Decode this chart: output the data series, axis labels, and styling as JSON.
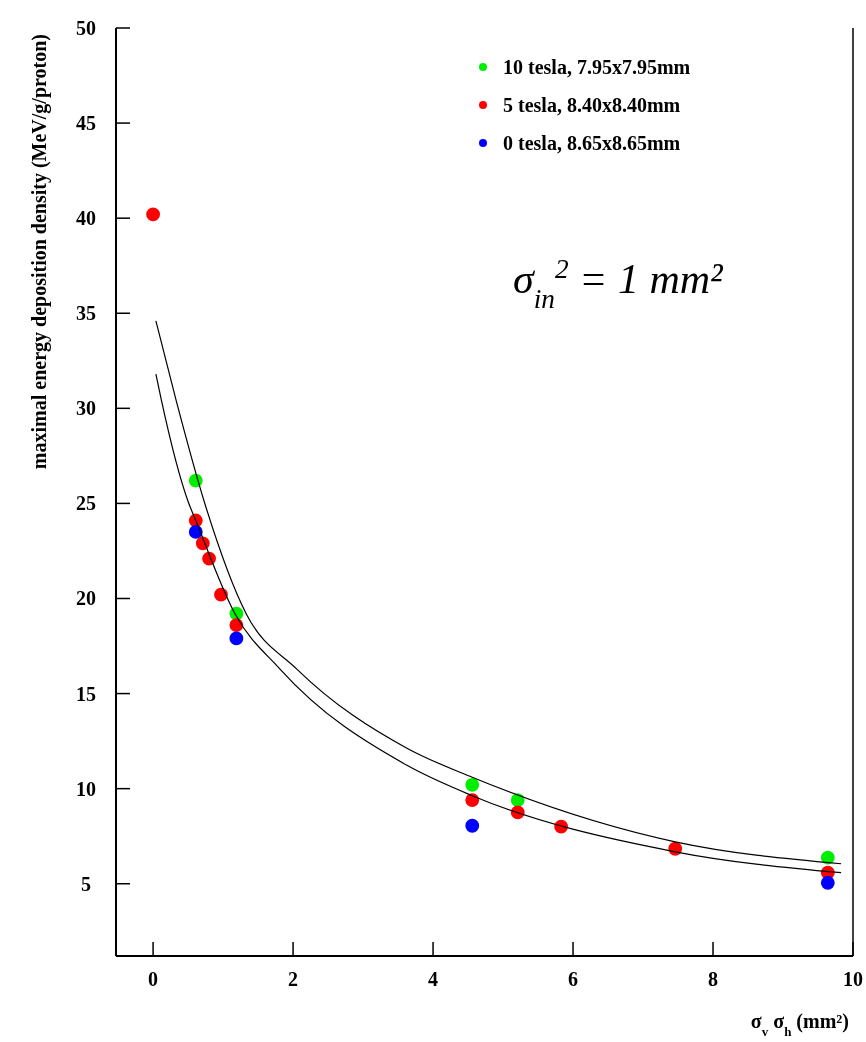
{
  "chart_data": {
    "type": "scatter",
    "xlabel": "σ$_{v}$ σ$_{h}$ (mm²)",
    "ylabel": "maximal energy deposition density (MeV/g/proton)",
    "xlim": [
      -0.53,
      10
    ],
    "ylim": [
      1.2,
      50
    ],
    "xticks": [
      0,
      2,
      4,
      6,
      8,
      10
    ],
    "yticks": [
      5,
      10,
      15,
      20,
      25,
      30,
      35,
      40,
      45,
      50
    ],
    "legend": "top right",
    "marker": "circle",
    "grid": false,
    "annotations": [
      "σ$_{in}$$^{2}$ = 1 mm²"
    ],
    "series": [
      {
        "name": "10 tesla, 7.95x7.95mm",
        "color": "#00ee00",
        "x": [
          0.61,
          1.19,
          4.56,
          5.21,
          9.64
        ],
        "values": [
          26.2,
          19.2,
          10.2,
          9.4,
          6.37
        ]
      },
      {
        "name": "5 tesla, 8.40x8.40mm",
        "color": "#ff0000",
        "x": [
          0,
          0.61,
          0.71,
          0.8,
          0.97,
          1.19,
          4.56,
          5.21,
          5.83,
          7.46,
          9.64
        ],
        "values": [
          40.2,
          24.1,
          22.9,
          22.1,
          20.2,
          18.6,
          9.4,
          8.75,
          8.0,
          6.84,
          5.58
        ]
      },
      {
        "name": "0 tesla, 8.65x8.65mm",
        "color": "#0000ff",
        "x": [
          0.61,
          1.19,
          4.56,
          9.64
        ],
        "values": [
          23.5,
          17.9,
          8.05,
          5.05
        ]
      },
      {
        "type": "line",
        "color": "#000000",
        "marker": "none",
        "x": [
          0.04,
          0.33,
          0.73,
          1.33,
          2.05,
          3.64,
          4.56,
          7.46,
          9.83
        ],
        "values": [
          34.6,
          30.4,
          25.1,
          19.2,
          16.3,
          12.1,
          10.6,
          7.2,
          6.05
        ]
      },
      {
        "type": "line",
        "color": "#000000",
        "marker": "none",
        "x": [
          0.04,
          0.12,
          0.5,
          0.61,
          1.17,
          1.81,
          3.64,
          4.56,
          7.46,
          9.83
        ],
        "values": [
          31.8,
          30.4,
          25.1,
          24.1,
          19.2,
          16.3,
          11.2,
          9.63,
          6.68,
          5.58
        ]
      }
    ]
  }
}
